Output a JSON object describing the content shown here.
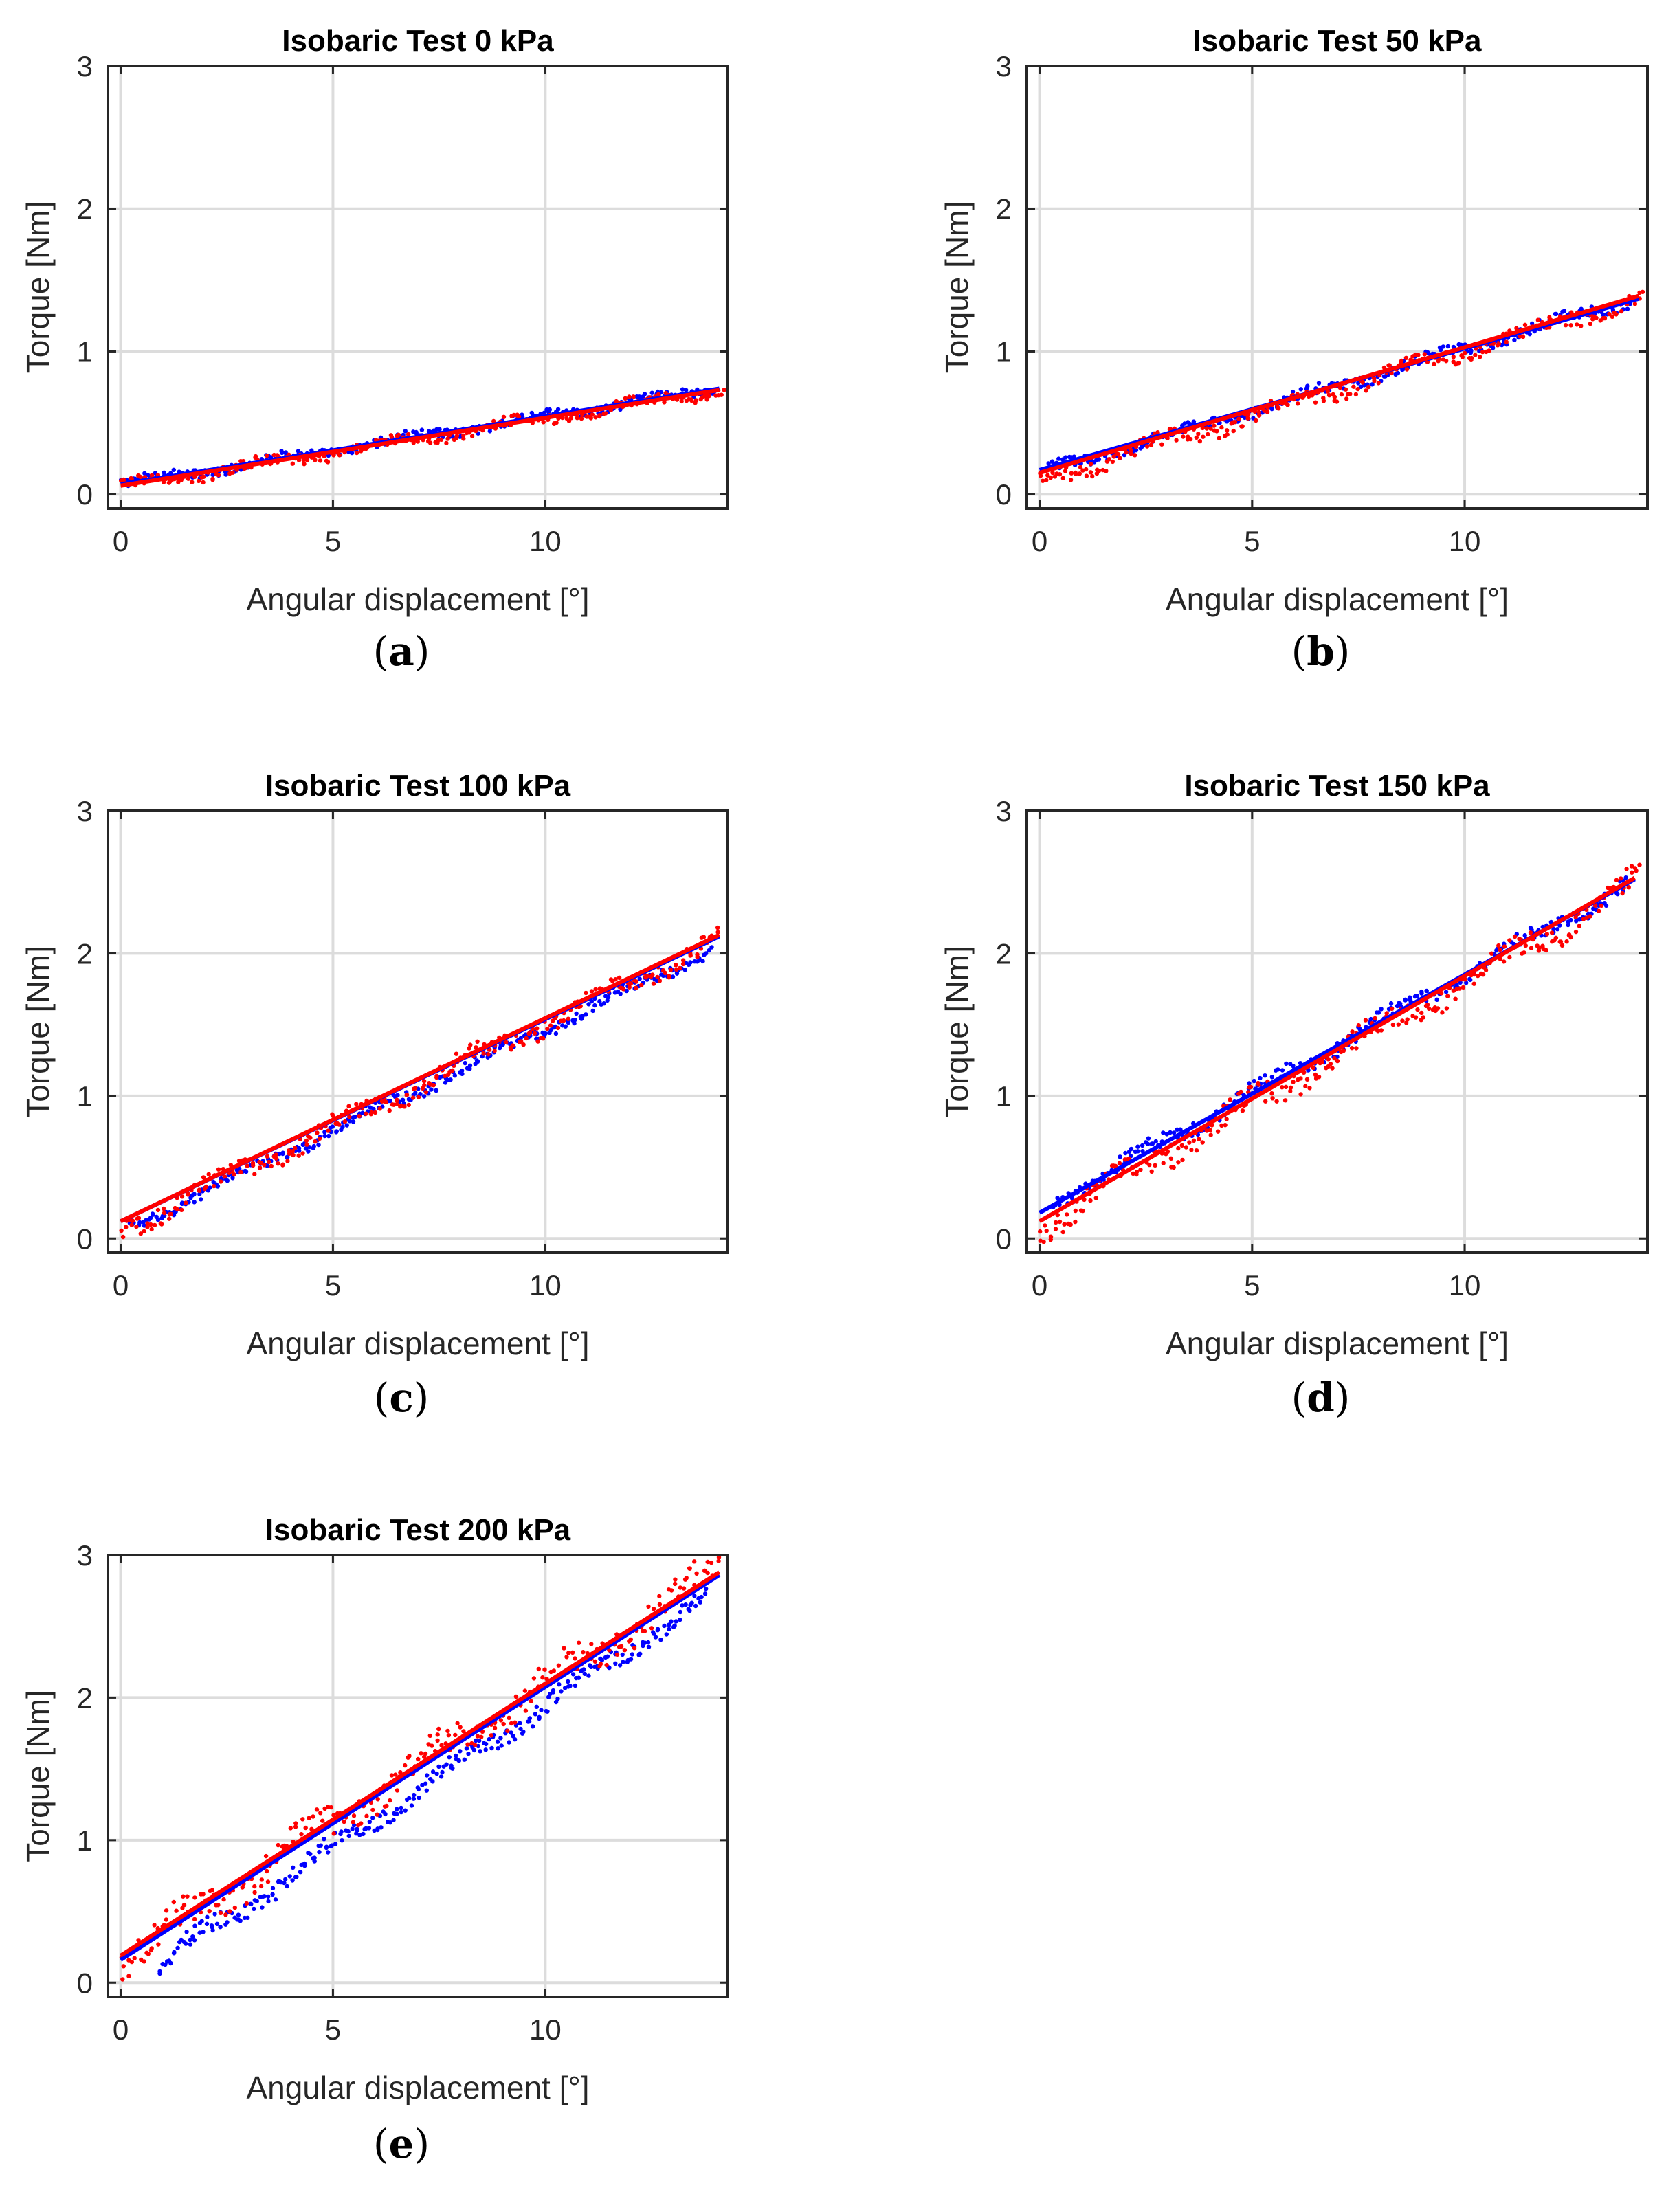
{
  "chart_data": [
    {
      "type": "scatter",
      "caption": "(a)",
      "caption_letter": "a",
      "title": "Isobaric Test 0 kPa",
      "xlabel": "Angular displacement [°]",
      "ylabel": "Torque [Nm]",
      "xlim": [
        -0.3,
        14.3
      ],
      "ylim": [
        -0.1,
        3
      ],
      "xticks": [
        0,
        5,
        10
      ],
      "yticks": [
        0,
        1,
        2,
        3
      ],
      "grid": true,
      "series": [
        {
          "color": "#0000ff",
          "marker": "dot",
          "slope": 0.0475,
          "intercept": 0.07,
          "noise": 0.03,
          "x_start": 0.0,
          "x_end": 14.0
        },
        {
          "color": "#ff0000",
          "marker": "dot",
          "slope": 0.048,
          "intercept": 0.05,
          "noise": 0.035,
          "x_start": 0.0,
          "x_end": 14.2
        },
        {
          "color": "#0000ff",
          "marker": "line",
          "x": [
            0,
            14.1
          ],
          "y": [
            0.07,
            0.74
          ]
        },
        {
          "color": "#ff0000",
          "marker": "line",
          "x": [
            0,
            14.1
          ],
          "y": [
            0.06,
            0.73
          ]
        }
      ]
    },
    {
      "type": "scatter",
      "caption": "(b)",
      "caption_letter": "b",
      "title": "Isobaric Test 50 kPa",
      "xlabel": "Angular displacement [°]",
      "ylabel": "Torque [Nm]",
      "xlim": [
        -0.3,
        14.3
      ],
      "ylim": [
        -0.1,
        3
      ],
      "xticks": [
        0,
        5,
        10
      ],
      "yticks": [
        0,
        1,
        2,
        3
      ],
      "grid": true,
      "series": [
        {
          "color": "#0000ff",
          "marker": "dot",
          "slope": 0.087,
          "intercept": 0.15,
          "noise": 0.035,
          "x_start": 0.2,
          "x_end": 13.9
        },
        {
          "color": "#ff0000",
          "marker": "dot",
          "slope": 0.09,
          "intercept": 0.1,
          "noise": 0.05,
          "x_start": 0.0,
          "x_end": 14.2
        },
        {
          "color": "#0000ff",
          "marker": "line",
          "x": [
            0,
            14.1
          ],
          "y": [
            0.17,
            1.37
          ]
        },
        {
          "color": "#ff0000",
          "marker": "line",
          "x": [
            0,
            14.1
          ],
          "y": [
            0.15,
            1.39
          ]
        }
      ]
    },
    {
      "type": "scatter",
      "caption": "(c)",
      "caption_letter": "c",
      "title": "Isobaric Test 100 kPa",
      "xlabel": "Angular displacement [°]",
      "ylabel": "Torque [Nm]",
      "xlim": [
        -0.3,
        14.3
      ],
      "ylim": [
        -0.1,
        3
      ],
      "xticks": [
        0,
        5,
        10
      ],
      "yticks": [
        0,
        1,
        2,
        3
      ],
      "grid": true,
      "series": [
        {
          "color": "#0000ff",
          "marker": "dot",
          "slope": 0.142,
          "intercept": 0.05,
          "noise": 0.04,
          "x_start": 0.2,
          "x_end": 13.9
        },
        {
          "color": "#ff0000",
          "marker": "dot",
          "slope": 0.145,
          "intercept": 0.06,
          "noise": 0.06,
          "x_start": 0.0,
          "x_end": 14.1
        },
        {
          "color": "#0000ff",
          "marker": "line",
          "x": [
            0,
            14.1
          ],
          "y": [
            0.12,
            2.12
          ]
        },
        {
          "color": "#ff0000",
          "marker": "line",
          "x": [
            0,
            14.1
          ],
          "y": [
            0.12,
            2.13
          ]
        }
      ]
    },
    {
      "type": "scatter",
      "caption": "(d)",
      "caption_letter": "d",
      "title": "Isobaric Test 150 kPa",
      "xlabel": "Angular displacement [°]",
      "ylabel": "Torque [Nm]",
      "xlim": [
        -0.3,
        14.3
      ],
      "ylim": [
        -0.1,
        3
      ],
      "xticks": [
        0,
        5,
        10
      ],
      "yticks": [
        0,
        1,
        2,
        3
      ],
      "grid": true,
      "series": [
        {
          "color": "#0000ff",
          "marker": "dot",
          "slope": 0.165,
          "intercept": 0.2,
          "noise": 0.05,
          "x_start": 0.3,
          "x_end": 13.8
        },
        {
          "color": "#ff0000",
          "marker": "dot",
          "slope": 0.172,
          "intercept": 0.08,
          "noise": 0.08,
          "x_start": 0.0,
          "x_end": 14.1
        },
        {
          "color": "#0000ff",
          "marker": "line",
          "x": [
            0,
            14.0
          ],
          "y": [
            0.18,
            2.52
          ]
        },
        {
          "color": "#ff0000",
          "marker": "line",
          "x": [
            0,
            14.0
          ],
          "y": [
            0.12,
            2.53
          ]
        }
      ]
    },
    {
      "type": "scatter",
      "caption": "(e)",
      "caption_letter": "e",
      "title": "Isobaric Test 200 kPa",
      "xlabel": "Angular displacement [°]",
      "ylabel": "Torque [Nm]",
      "xlim": [
        -0.3,
        14.3
      ],
      "ylim": [
        -0.1,
        3
      ],
      "xticks": [
        0,
        5,
        10
      ],
      "yticks": [
        0,
        1,
        2,
        3
      ],
      "grid": true,
      "series": [
        {
          "color": "#0000ff",
          "marker": "dot",
          "slope": 0.2,
          "intercept": -0.05,
          "noise": 0.06,
          "x_start": 0.9,
          "x_end": 13.9
        },
        {
          "color": "#ff0000",
          "marker": "dot",
          "slope": 0.195,
          "intercept": 0.15,
          "noise": 0.1,
          "x_start": 0.0,
          "x_end": 14.1
        },
        {
          "color": "#0000ff",
          "marker": "line",
          "x": [
            0,
            14.1
          ],
          "y": [
            0.16,
            2.86
          ]
        },
        {
          "color": "#ff0000",
          "marker": "line",
          "x": [
            0,
            14.1
          ],
          "y": [
            0.19,
            2.88
          ]
        }
      ]
    }
  ]
}
